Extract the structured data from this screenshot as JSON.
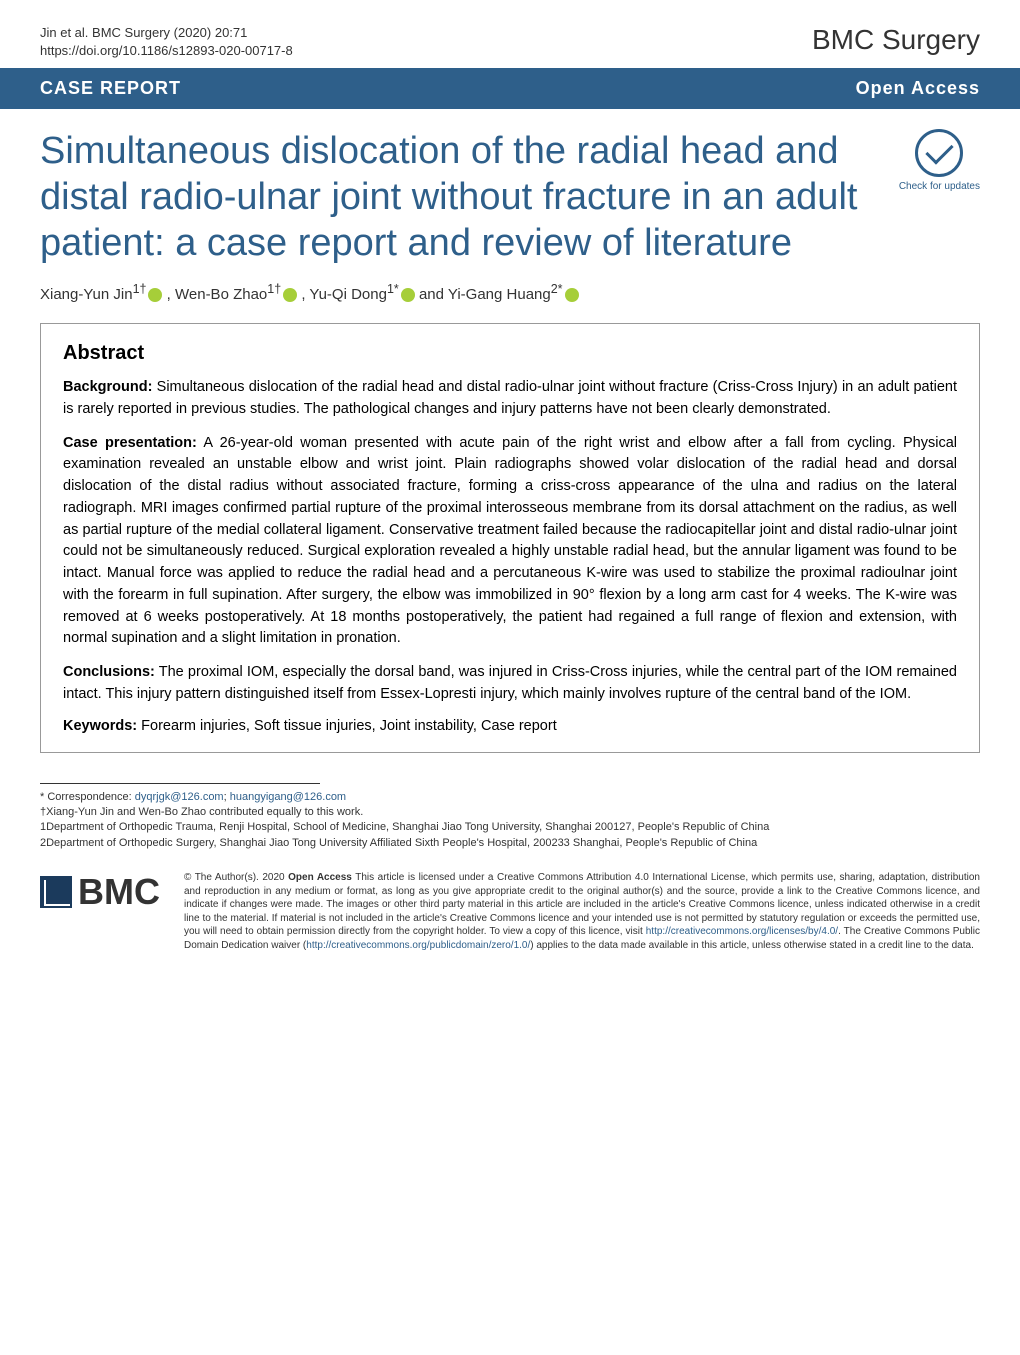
{
  "header": {
    "citation_line1": "Jin et al. BMC Surgery        (2020) 20:71",
    "citation_line2": "https://doi.org/10.1186/s12893-020-00717-8",
    "journal_name": "BMC Surgery"
  },
  "typebar": {
    "article_type": "CASE REPORT",
    "access": "Open Access"
  },
  "title": "Simultaneous dislocation of the radial head and distal radio-ulnar joint without fracture in an adult patient: a case report and review of literature",
  "check_updates_label": "Check for updates",
  "authors": {
    "a1": "Xiang-Yun Jin",
    "a1_sup": "1†",
    "a2": ", Wen-Bo Zhao",
    "a2_sup": "1†",
    "a3": ", Yu-Qi Dong",
    "a3_sup": "1*",
    "a4": " and Yi-Gang Huang",
    "a4_sup": "2*"
  },
  "abstract": {
    "heading": "Abstract",
    "background_label": "Background:",
    "background_text": " Simultaneous dislocation of the radial head and distal radio-ulnar joint without fracture (Criss-Cross Injury) in an adult patient is rarely reported in previous studies. The pathological changes and injury patterns have not been clearly demonstrated.",
    "case_label": "Case presentation:",
    "case_text": " A 26-year-old woman presented with acute pain of the right wrist and elbow after a fall from cycling. Physical examination revealed an unstable elbow and wrist joint. Plain radiographs showed volar dislocation of the radial head and dorsal dislocation of the distal radius without associated fracture, forming a criss-cross appearance of the ulna and radius on the lateral radiograph. MRI images confirmed partial rupture of the proximal interosseous membrane from its dorsal attachment on the radius, as well as partial rupture of the medial collateral ligament. Conservative treatment failed because the radiocapitellar joint and distal radio-ulnar joint could not be simultaneously reduced. Surgical exploration revealed a highly unstable radial head, but the annular ligament was found to be intact. Manual force was applied to reduce the radial head and a percutaneous K-wire was used to stabilize the proximal radioulnar joint with the forearm in full supination. After surgery, the elbow was immobilized in 90° flexion by a long arm cast for 4 weeks. The K-wire was removed at 6 weeks postoperatively. At 18 months postoperatively, the patient had regained a full range of flexion and extension, with normal supination and a slight limitation in pronation.",
    "conclusions_label": "Conclusions:",
    "conclusions_text": " The proximal IOM, especially the dorsal band, was injured in Criss-Cross injuries, while the central part of the IOM remained intact. This injury pattern distinguished itself from Essex-Lopresti injury, which mainly involves rupture of the central band of the IOM.",
    "keywords_label": "Keywords:",
    "keywords_text": " Forearm injuries, Soft tissue injuries, Joint instability, Case report"
  },
  "correspondence": {
    "line_star": "* Correspondence: ",
    "email1": "dyqrjgk@126.com",
    "sep": "; ",
    "email2": "huangyigang@126.com",
    "line_dagger": "†Xiang-Yun Jin and Wen-Bo Zhao contributed equally to this work.",
    "affil1": "1Department of Orthopedic Trauma, Renji Hospital, School of Medicine, Shanghai Jiao Tong University, Shanghai 200127, People's Republic of China",
    "affil2": "2Department of Orthopedic Surgery, Shanghai Jiao Tong University Affiliated Sixth People's Hospital, 200233 Shanghai, People's Republic of China"
  },
  "footer": {
    "bmc": "BMC",
    "license_prefix": "© The Author(s). 2020 ",
    "open_access": "Open Access",
    "license_body": " This article is licensed under a Creative Commons Attribution 4.0 International License, which permits use, sharing, adaptation, distribution and reproduction in any medium or format, as long as you give appropriate credit to the original author(s) and the source, provide a link to the Creative Commons licence, and indicate if changes were made. The images or other third party material in this article are included in the article's Creative Commons licence, unless indicated otherwise in a credit line to the material. If material is not included in the article's Creative Commons licence and your intended use is not permitted by statutory regulation or exceeds the permitted use, you will need to obtain permission directly from the copyright holder. To view a copy of this licence, visit ",
    "license_link1": "http://creativecommons.org/licenses/by/4.0/",
    "license_body2": ". The Creative Commons Public Domain Dedication waiver (",
    "license_link2": "http://creativecommons.org/publicdomain/zero/1.0/",
    "license_body3": ") applies to the data made available in this article, unless otherwise stated in a credit line to the data."
  },
  "colors": {
    "brand_blue": "#2e5f8a",
    "orcid_green": "#a6ce39",
    "bmc_navy": "#1b3a5c"
  }
}
